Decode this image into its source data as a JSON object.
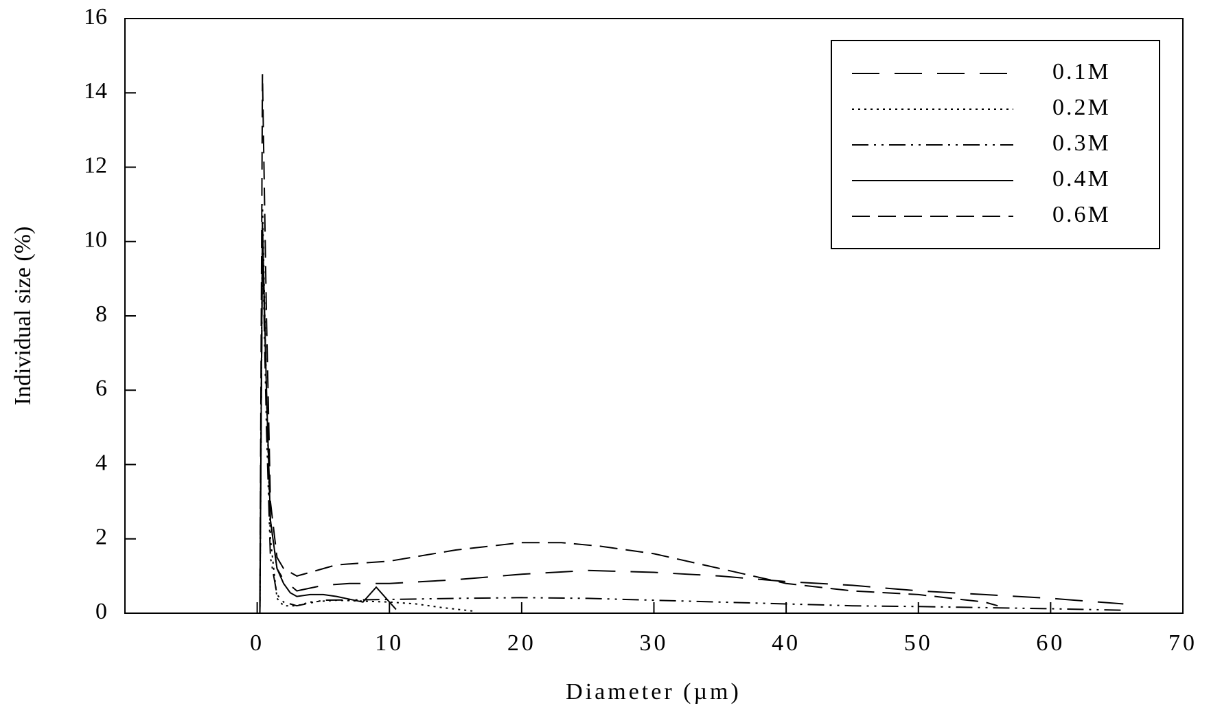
{
  "chart_data": {
    "type": "line",
    "x_label": "Diameter (µm)",
    "y_label": "Individual size (%)",
    "xlim": [
      -10,
      70
    ],
    "ylim": [
      0,
      16
    ],
    "xticks": [
      0,
      10,
      20,
      30,
      40,
      50,
      60,
      70
    ],
    "yticks": [
      0,
      2,
      4,
      6,
      8,
      10,
      12,
      14,
      16
    ],
    "legend_position": "upper right",
    "series": [
      {
        "name": "0.1M",
        "color": "#000000",
        "x": [
          0.2,
          0.4,
          0.7,
          1.0,
          1.5,
          2.0,
          3.0,
          5.0,
          7.0,
          10.0,
          15.0,
          20.0,
          25.0,
          30.0,
          35.0,
          40.0,
          45.0,
          50.0,
          55.0,
          60.0,
          65.5
        ],
        "values": [
          0,
          10.0,
          6.0,
          2.5,
          1.2,
          0.9,
          0.6,
          0.75,
          0.8,
          0.8,
          0.9,
          1.05,
          1.15,
          1.1,
          1.0,
          0.85,
          0.75,
          0.6,
          0.5,
          0.4,
          0.25
        ]
      },
      {
        "name": "0.2M",
        "color": "#000000",
        "x": [
          0.2,
          0.4,
          0.7,
          1.0,
          1.5,
          2.0,
          3.0,
          4.0,
          6.0,
          10.0,
          12.0,
          14.0,
          16.5
        ],
        "values": [
          0,
          11.0,
          6.0,
          2.0,
          0.4,
          0.2,
          0.2,
          0.3,
          0.35,
          0.3,
          0.25,
          0.15,
          0.05
        ]
      },
      {
        "name": "0.3M",
        "color": "#000000",
        "x": [
          0.2,
          0.4,
          0.7,
          1.0,
          1.5,
          2.0,
          3.0,
          5.0,
          10.0,
          15.0,
          20.0,
          25.0,
          30.0,
          35.0,
          40.0,
          45.0,
          50.0,
          55.0,
          60.0,
          65.5
        ],
        "values": [
          0,
          10.0,
          5.0,
          1.5,
          0.5,
          0.3,
          0.2,
          0.35,
          0.37,
          0.4,
          0.42,
          0.4,
          0.35,
          0.3,
          0.25,
          0.2,
          0.18,
          0.15,
          0.12,
          0.08
        ]
      },
      {
        "name": "0.4M",
        "color": "#000000",
        "x": [
          0.2,
          0.4,
          0.7,
          1.0,
          1.5,
          2.0,
          2.5,
          3.0,
          4.0,
          5.0,
          6.0,
          8.0,
          9.0,
          10.5
        ],
        "values": [
          0,
          10.5,
          6.0,
          2.5,
          1.2,
          0.8,
          0.55,
          0.45,
          0.5,
          0.5,
          0.45,
          0.3,
          0.7,
          0.1
        ]
      },
      {
        "name": "0.6M",
        "color": "#000000",
        "x": [
          0.2,
          0.4,
          0.7,
          1.0,
          1.5,
          2.0,
          3.0,
          4.0,
          6.0,
          10.0,
          15.0,
          20.0,
          23.0,
          26.0,
          30.0,
          35.0,
          40.0,
          45.0,
          50.0,
          55.0,
          56.0
        ],
        "values": [
          0,
          14.5,
          8.0,
          3.0,
          1.5,
          1.2,
          1.0,
          1.1,
          1.3,
          1.4,
          1.7,
          1.9,
          1.9,
          1.8,
          1.6,
          1.2,
          0.8,
          0.6,
          0.5,
          0.3,
          0.2
        ]
      }
    ]
  }
}
